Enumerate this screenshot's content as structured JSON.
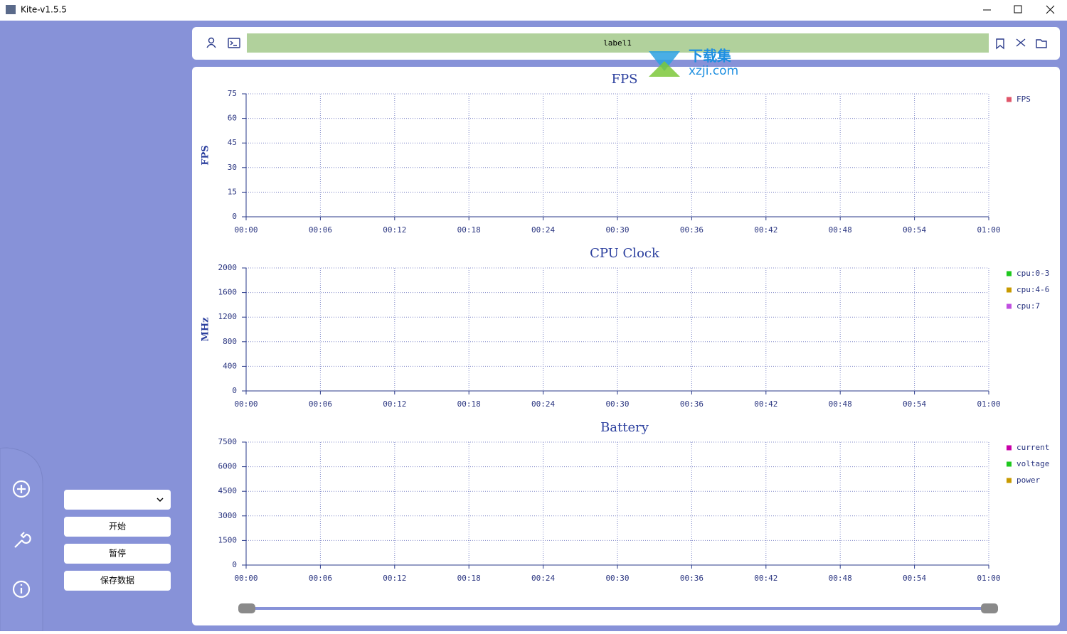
{
  "window": {
    "title": "Kite-v1.5.5"
  },
  "toolbar": {
    "label": "label1"
  },
  "watermark": {
    "title": "下载集",
    "url": "xzji.com"
  },
  "controls": {
    "buttons": [
      "开始",
      "暂停",
      "保存数据"
    ]
  },
  "chart_data": [
    {
      "type": "line",
      "title": "FPS",
      "y_label": "FPS",
      "series": [
        {
          "name": "FPS",
          "color": "#e0566a"
        }
      ],
      "xlim": [
        0,
        60
      ],
      "xticks": [
        {
          "value": 0,
          "label": "00:00"
        },
        {
          "value": 6,
          "label": "00:06"
        },
        {
          "value": 12,
          "label": "00:12"
        },
        {
          "value": 18,
          "label": "00:18"
        },
        {
          "value": 24,
          "label": "00:24"
        },
        {
          "value": 30,
          "label": "00:30"
        },
        {
          "value": 36,
          "label": "00:36"
        },
        {
          "value": 42,
          "label": "00:42"
        },
        {
          "value": 48,
          "label": "00:48"
        },
        {
          "value": 54,
          "label": "00:54"
        },
        {
          "value": 60,
          "label": "01:00"
        }
      ],
      "ylim": [
        0,
        75
      ],
      "yticks": [
        0,
        15,
        30,
        45,
        60,
        75
      ],
      "grid": true
    },
    {
      "type": "line",
      "title": "CPU Clock",
      "y_label": "MHz",
      "series": [
        {
          "name": "cpu:0-3",
          "color": "#1ec81e"
        },
        {
          "name": "cpu:4-6",
          "color": "#c89a00"
        },
        {
          "name": "cpu:7",
          "color": "#c04fe0"
        }
      ],
      "xlim": [
        0,
        60
      ],
      "xticks": [
        {
          "value": 0,
          "label": "00:00"
        },
        {
          "value": 6,
          "label": "00:06"
        },
        {
          "value": 12,
          "label": "00:12"
        },
        {
          "value": 18,
          "label": "00:18"
        },
        {
          "value": 24,
          "label": "00:24"
        },
        {
          "value": 30,
          "label": "00:30"
        },
        {
          "value": 36,
          "label": "00:36"
        },
        {
          "value": 42,
          "label": "00:42"
        },
        {
          "value": 48,
          "label": "00:48"
        },
        {
          "value": 54,
          "label": "00:54"
        },
        {
          "value": 60,
          "label": "01:00"
        }
      ],
      "ylim": [
        0,
        2000
      ],
      "yticks": [
        0,
        400,
        800,
        1200,
        1600,
        2000
      ],
      "grid": true
    },
    {
      "type": "line",
      "title": "Battery",
      "series": [
        {
          "name": "current",
          "color": "#c800a8"
        },
        {
          "name": "voltage",
          "color": "#1ec81e"
        },
        {
          "name": "power",
          "color": "#c89a00"
        }
      ],
      "xlim": [
        0,
        60
      ],
      "xticks": [
        {
          "value": 0,
          "label": "00:00"
        },
        {
          "value": 6,
          "label": "00:06"
        },
        {
          "value": 12,
          "label": "00:12"
        },
        {
          "value": 18,
          "label": "00:18"
        },
        {
          "value": 24,
          "label": "00:24"
        },
        {
          "value": 30,
          "label": "00:30"
        },
        {
          "value": 36,
          "label": "00:36"
        },
        {
          "value": 42,
          "label": "00:42"
        },
        {
          "value": 48,
          "label": "00:48"
        },
        {
          "value": 54,
          "label": "00:54"
        },
        {
          "value": 60,
          "label": "01:00"
        }
      ],
      "ylim": [
        0,
        7500
      ],
      "yticks": [
        0,
        1500,
        3000,
        4500,
        6000,
        7500
      ],
      "grid": true
    }
  ]
}
